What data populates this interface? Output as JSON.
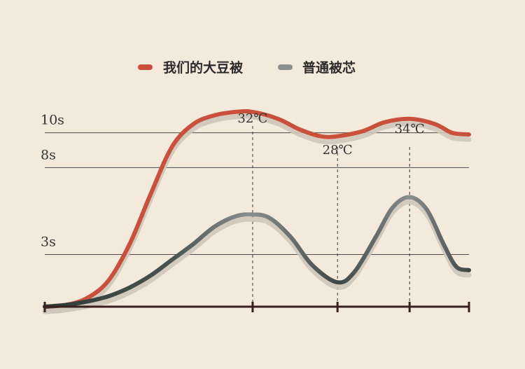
{
  "chart_data": {
    "type": "line",
    "title": "",
    "xlabel": "",
    "ylabel": "",
    "legend": {
      "position": "top-center"
    },
    "colors": {
      "background": "#f3eadb",
      "ours": "#c8503c",
      "normal_light": "#8a8f8f",
      "normal_dark": "#3f4646",
      "shadow": "#cfc7ba",
      "axis": "#3a1f1f",
      "grid": "#4a4a4a"
    },
    "y_ticks": [
      {
        "label": "10s",
        "value": 10
      },
      {
        "label": "8s",
        "value": 8
      },
      {
        "label": "3s",
        "value": 3
      }
    ],
    "temperature_markers": [
      {
        "label": "32℃",
        "x": 4.9
      },
      {
        "label": "28℃",
        "x": 6.9
      },
      {
        "label": "34℃",
        "x": 8.6
      }
    ],
    "x_ticks": [
      0,
      4.9,
      6.9,
      8.6,
      10
    ],
    "xlim": [
      0,
      10
    ],
    "ylim": [
      0,
      12
    ],
    "series": [
      {
        "name": "我们的大豆被",
        "x": [
          0,
          0.5,
          1.0,
          1.5,
          2.0,
          2.5,
          3.0,
          3.5,
          4.0,
          4.5,
          4.9,
          5.5,
          6.0,
          6.5,
          6.9,
          7.5,
          8.0,
          8.6,
          9.2,
          9.6,
          10
        ],
        "values": [
          0,
          0.1,
          0.5,
          1.5,
          3.6,
          6.5,
          9.2,
          10.5,
          11.0,
          11.2,
          11.2,
          10.8,
          10.2,
          9.8,
          9.8,
          10.1,
          10.6,
          10.8,
          10.5,
          10.0,
          9.9
        ]
      },
      {
        "name": "普通被芯",
        "x": [
          0,
          0.5,
          1.0,
          1.5,
          2.0,
          2.5,
          3.0,
          3.5,
          4.0,
          4.5,
          4.9,
          5.3,
          5.8,
          6.3,
          6.9,
          7.3,
          7.8,
          8.2,
          8.6,
          9.0,
          9.4,
          9.7,
          10
        ],
        "values": [
          0,
          0.1,
          0.3,
          0.6,
          1.1,
          1.8,
          2.7,
          3.6,
          4.6,
          5.2,
          5.3,
          5.1,
          4.0,
          2.4,
          1.4,
          2.0,
          4.0,
          5.7,
          6.3,
          5.6,
          3.6,
          2.3,
          2.1
        ]
      }
    ]
  }
}
